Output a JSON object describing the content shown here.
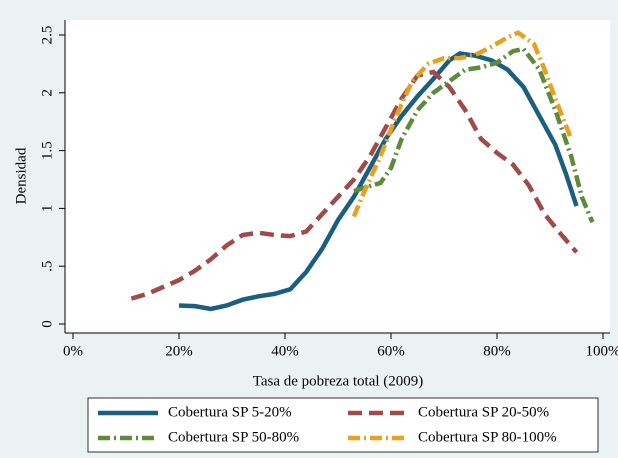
{
  "chart_data": {
    "type": "line",
    "xlabel": "Tasa de pobreza total (2009)",
    "ylabel": "Densidad",
    "xlim": [
      0,
      100
    ],
    "ylim": [
      0,
      2.5
    ],
    "xticks": [
      {
        "value": 0,
        "label": "0%"
      },
      {
        "value": 20,
        "label": "20%"
      },
      {
        "value": 40,
        "label": "40%"
      },
      {
        "value": 60,
        "label": "60%"
      },
      {
        "value": 80,
        "label": "80%"
      },
      {
        "value": 100,
        "label": "100%"
      }
    ],
    "yticks": [
      0,
      {
        "value": 0.5,
        "label": ".5"
      },
      1,
      1.5,
      2,
      2.5
    ],
    "series": [
      {
        "name": "Cobertura SP 5-20%",
        "color": "#1a5e80",
        "dash": "solid",
        "x": [
          20,
          23,
          26,
          29,
          32,
          35,
          38,
          41,
          44,
          47,
          50,
          53,
          56,
          59,
          62,
          65,
          68,
          71,
          73,
          76,
          79,
          82,
          85,
          88,
          91,
          93,
          95
        ],
        "values": [
          0.16,
          0.155,
          0.13,
          0.16,
          0.21,
          0.24,
          0.26,
          0.3,
          0.45,
          0.65,
          0.9,
          1.1,
          1.35,
          1.6,
          1.8,
          1.97,
          2.12,
          2.28,
          2.34,
          2.32,
          2.28,
          2.2,
          2.05,
          1.8,
          1.55,
          1.3,
          1.02
        ]
      },
      {
        "name": "Cobertura SP 20-50%",
        "color": "#a04a4a",
        "dash": "dashed",
        "x": [
          11,
          14,
          17,
          20,
          23,
          26,
          29,
          32,
          35,
          38,
          41,
          44,
          47,
          50,
          53,
          56,
          59,
          62,
          65,
          68,
          71,
          74,
          77,
          80,
          83,
          86,
          89,
          92,
          95
        ],
        "values": [
          0.22,
          0.26,
          0.32,
          0.38,
          0.46,
          0.56,
          0.68,
          0.77,
          0.79,
          0.77,
          0.76,
          0.8,
          0.95,
          1.1,
          1.25,
          1.45,
          1.7,
          1.95,
          2.15,
          2.18,
          2.05,
          1.85,
          1.6,
          1.48,
          1.38,
          1.2,
          0.95,
          0.78,
          0.62
        ]
      },
      {
        "name": "Cobertura SP 50-80%",
        "color": "#5e8a3c",
        "dash": "dashdot",
        "x": [
          53,
          55,
          58,
          60,
          62,
          65,
          68,
          71,
          74,
          77,
          80,
          83,
          85,
          88,
          91,
          94,
          96,
          98
        ],
        "values": [
          1.15,
          1.18,
          1.22,
          1.35,
          1.6,
          1.85,
          2.0,
          2.1,
          2.2,
          2.22,
          2.26,
          2.36,
          2.38,
          2.2,
          1.85,
          1.45,
          1.1,
          0.88
        ]
      },
      {
        "name": "Cobertura SP 80-100%",
        "color": "#e8a020",
        "dash": "dashdot",
        "x": [
          53,
          55,
          58,
          61,
          64,
          67,
          70,
          73,
          76,
          79,
          82,
          84,
          87,
          89,
          91,
          94
        ],
        "values": [
          0.93,
          1.15,
          1.45,
          1.8,
          2.1,
          2.25,
          2.3,
          2.3,
          2.33,
          2.4,
          2.48,
          2.52,
          2.42,
          2.2,
          1.95,
          1.6
        ]
      }
    ]
  }
}
